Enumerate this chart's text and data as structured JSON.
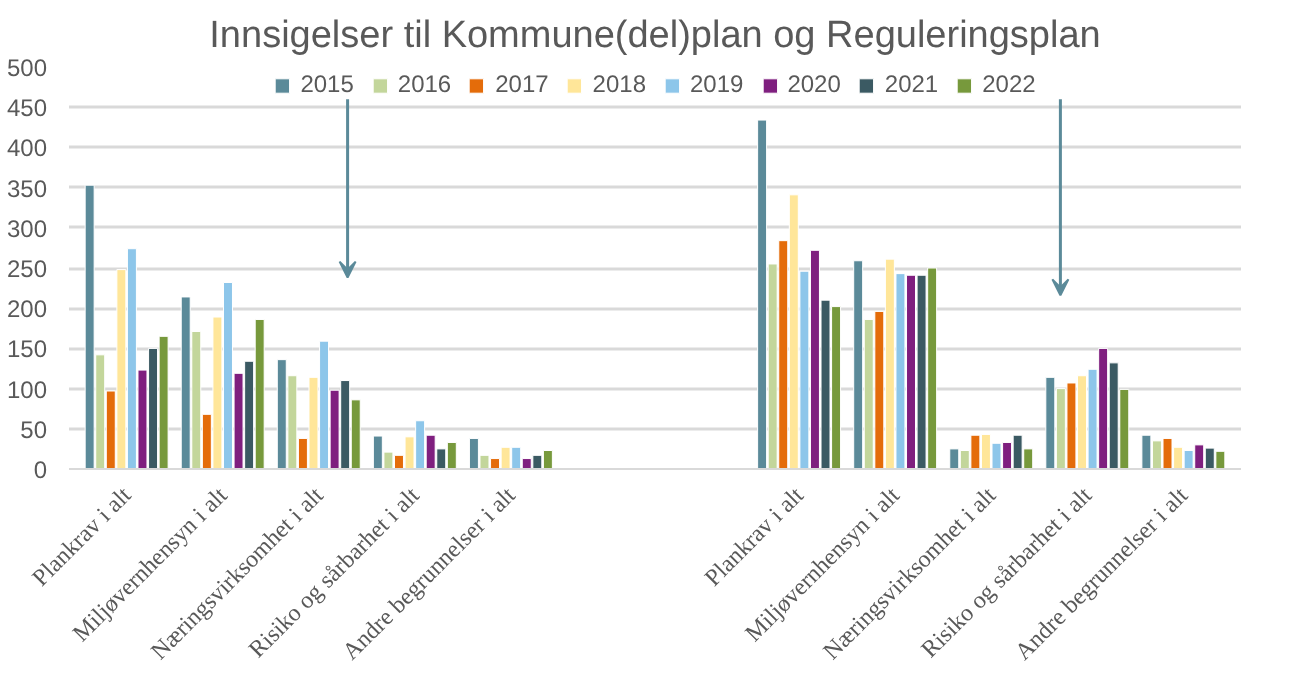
{
  "chart_data": {
    "type": "bar",
    "title": "Innsigelser til Kommune(del)plan og Reguleringsplan",
    "categories": [
      "Plankrav i alt",
      "Miljøvernhensyn i alt",
      "Næringsvirksomhet i alt",
      "Risiko og sårbarhet i alt",
      "Andre begrunnelser i alt",
      null,
      null,
      "Plankrav i alt",
      "Miljøvernhensyn i alt",
      "Næringsvirksomhet i alt",
      "Risiko og sårbarhet i alt",
      "Andre begrunnelser i alt"
    ],
    "series": [
      {
        "name": "2015",
        "color": "#5b8a99",
        "values": [
          353,
          214,
          136,
          41,
          38,
          null,
          null,
          434,
          259,
          25,
          114,
          42
        ]
      },
      {
        "name": "2016",
        "color": "#c3d69b",
        "values": [
          142,
          171,
          116,
          21,
          17,
          null,
          null,
          255,
          186,
          23,
          100,
          35
        ]
      },
      {
        "name": "2017",
        "color": "#e46c0a",
        "values": [
          97,
          68,
          38,
          17,
          13,
          null,
          null,
          284,
          196,
          42,
          107,
          38
        ]
      },
      {
        "name": "2018",
        "color": "#ffe699",
        "values": [
          248,
          189,
          114,
          40,
          27,
          null,
          null,
          341,
          261,
          43,
          116,
          27
        ]
      },
      {
        "name": "2019",
        "color": "#8dc6ea",
        "values": [
          274,
          232,
          159,
          60,
          27,
          null,
          null,
          246,
          243,
          32,
          124,
          23
        ]
      },
      {
        "name": "2020",
        "color": "#7f1f7f",
        "values": [
          123,
          119,
          98,
          42,
          13,
          null,
          null,
          272,
          241,
          33,
          150,
          30
        ]
      },
      {
        "name": "2021",
        "color": "#3b5a63",
        "values": [
          150,
          134,
          110,
          25,
          17,
          null,
          null,
          210,
          241,
          42,
          132,
          26
        ]
      },
      {
        "name": "2022",
        "color": "#77993c",
        "values": [
          165,
          186,
          86,
          33,
          23,
          null,
          null,
          202,
          250,
          25,
          99,
          22
        ]
      }
    ],
    "ylim": [
      0,
      500
    ],
    "yticks": [
      0,
      50,
      100,
      150,
      200,
      250,
      300,
      350,
      400,
      450,
      500
    ],
    "grid": "y",
    "legend": "top"
  }
}
